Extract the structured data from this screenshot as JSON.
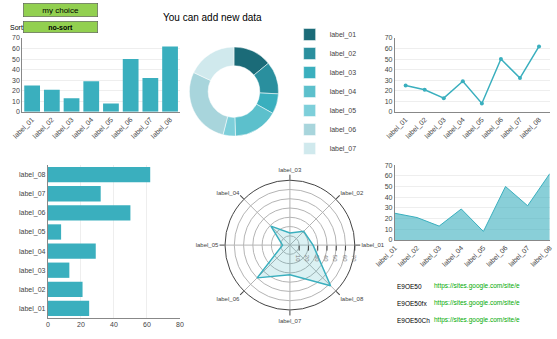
{
  "chart_data": [
    {
      "type": "bar",
      "categories": [
        "label_01",
        "label_02",
        "label_03",
        "label_04",
        "label_05",
        "label_06",
        "label_07",
        "label_08"
      ],
      "values": [
        25,
        21,
        13,
        29,
        8,
        50,
        32,
        62
      ],
      "color": "#3AAFBE",
      "ylim": [
        0,
        70
      ],
      "yticks": [
        0,
        10,
        20,
        30,
        40,
        50,
        60,
        70
      ],
      "grid": true,
      "annotations": [
        {
          "text": "my choice",
          "color": "#92D050"
        },
        {
          "text": "Sort:"
        },
        {
          "text": "no-sort",
          "color": "#92D050"
        },
        {
          "text": "You can add new data"
        }
      ]
    },
    {
      "type": "donut",
      "categories": [
        "label_01",
        "label_02",
        "label_03",
        "label_04",
        "label_05",
        "label_06",
        "label_07"
      ],
      "values": [
        25,
        21,
        13,
        29,
        8,
        50,
        32
      ],
      "colors": [
        "#1B6B78",
        "#2A8F9E",
        "#3AAFBE",
        "#5CC0CC",
        "#7DCFDA",
        "#A8D5DC",
        "#D0E9ED"
      ],
      "legend": "right"
    },
    {
      "type": "line",
      "categories": [
        "label_01",
        "label_02",
        "label_03",
        "label_04",
        "label_05",
        "label_06",
        "label_07",
        "label_08"
      ],
      "values": [
        25,
        21,
        13,
        29,
        8,
        50,
        32,
        62
      ],
      "color": "#3AAFBE",
      "marker": "circle",
      "ylim": [
        0,
        70
      ],
      "yticks": [
        0,
        10,
        20,
        30,
        40,
        50,
        60,
        70
      ],
      "grid": true
    },
    {
      "type": "bar",
      "orientation": "horizontal",
      "categories": [
        "label_01",
        "label_02",
        "label_03",
        "label_04",
        "label_05",
        "label_06",
        "label_07",
        "label_08"
      ],
      "values": [
        25,
        21,
        13,
        29,
        8,
        50,
        32,
        62
      ],
      "color": "#3AAFBE",
      "xlim": [
        0,
        80
      ],
      "xticks": [
        0,
        20,
        40,
        60,
        80
      ],
      "grid": true
    },
    {
      "type": "radar",
      "categories": [
        "label_01",
        "label_02",
        "label_03",
        "label_04",
        "label_05",
        "label_06",
        "label_07",
        "label_08"
      ],
      "values": [
        25,
        21,
        13,
        29,
        8,
        50,
        32,
        62
      ],
      "color": "#3AAFBE",
      "ylim": [
        0,
        70
      ],
      "yticks": [
        10,
        20,
        30,
        40,
        50,
        60,
        70
      ],
      "grid": true
    },
    {
      "type": "area",
      "categories": [
        "label_01",
        "label_02",
        "label_03",
        "label_04",
        "label_05",
        "label_06",
        "label_07",
        "label_08"
      ],
      "values": [
        25,
        21,
        13,
        29,
        8,
        50,
        32,
        62
      ],
      "color": "#3AAFBE",
      "ylim": [
        0,
        70
      ],
      "yticks": [
        0,
        10,
        20,
        30,
        40,
        50,
        60,
        70
      ],
      "grid": true,
      "annotations": [
        {
          "text": "E9OE50"
        },
        {
          "text": "https://sites.google.com/site/e",
          "color": "#00AA00"
        },
        {
          "text": "E9OE50fx"
        },
        {
          "text": "https://sites.google.com/site/e",
          "color": "#00AA00"
        },
        {
          "text": "E9OE50Ch"
        },
        {
          "text": "https://sites.google.com/site/e",
          "color": "#00AA00"
        }
      ]
    }
  ]
}
